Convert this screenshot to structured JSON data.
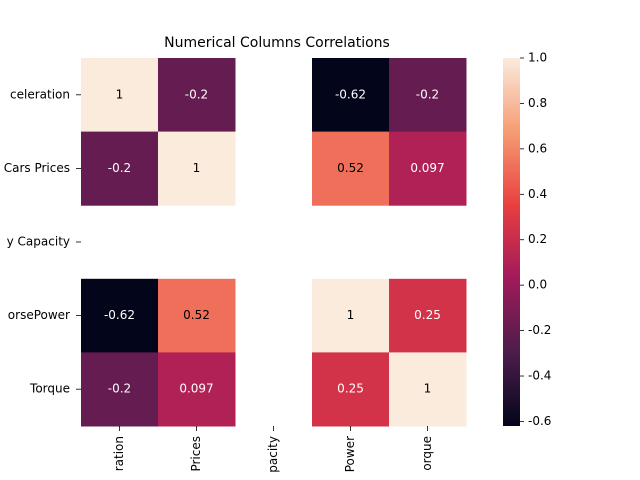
{
  "chart_data": {
    "type": "heatmap",
    "title": "Numerical Columns Correlations",
    "x_labels": [
      "ration",
      "Prices",
      "pacity",
      "Power",
      "orque"
    ],
    "y_labels": [
      "celeration",
      "Cars Prices",
      "y Capacity",
      "orsePower",
      "Torque"
    ],
    "values": [
      [
        1,
        -0.2,
        null,
        -0.62,
        -0.2
      ],
      [
        -0.2,
        1,
        null,
        0.52,
        0.097
      ],
      [
        null,
        null,
        null,
        null,
        null
      ],
      [
        -0.62,
        0.52,
        null,
        1,
        0.25
      ],
      [
        -0.2,
        0.097,
        null,
        0.25,
        1
      ]
    ],
    "clim": [
      -0.62,
      1
    ],
    "cticks": [
      -0.6,
      -0.4,
      -0.2,
      {
        "value": 0,
        "label": "0.0"
      },
      0.2,
      0.4,
      0.6,
      0.8,
      {
        "value": 1,
        "label": "1.0"
      }
    ],
    "colormap": [
      "#03051a",
      "#4c1d4b",
      "#a11a5b",
      "#e83f3f",
      "#f69c73",
      "#faebdd"
    ]
  }
}
